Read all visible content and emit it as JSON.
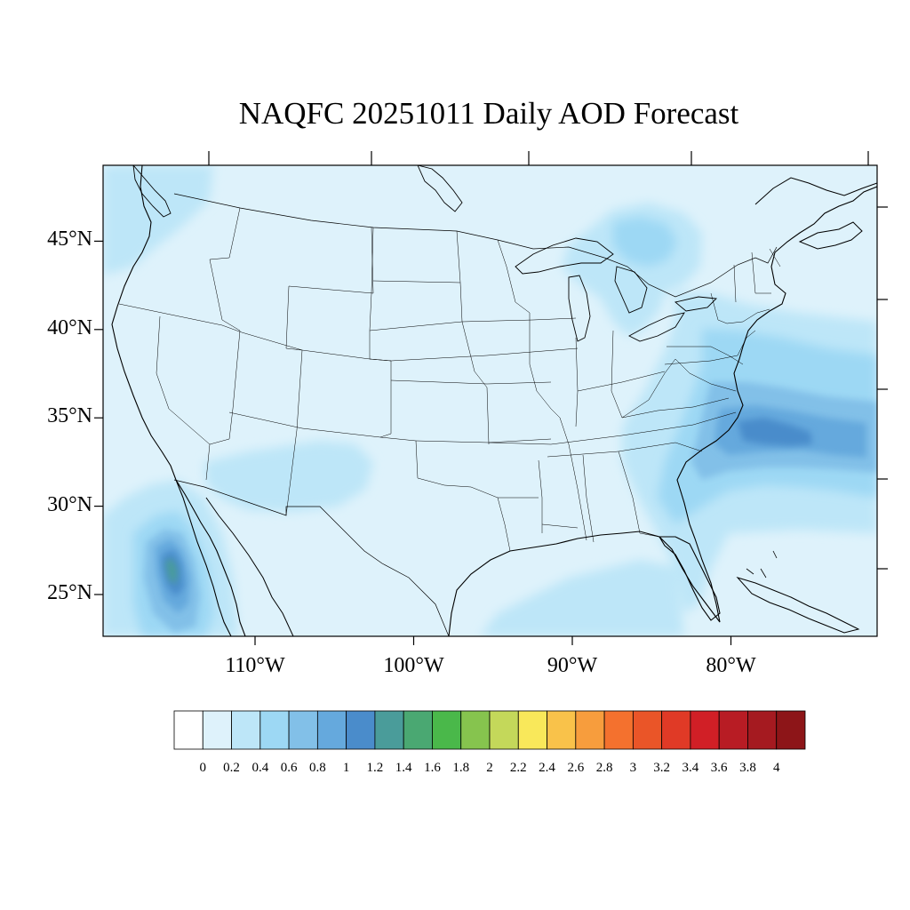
{
  "title": "NAQFC 20251011 Daily AOD Forecast",
  "map": {
    "projection": "lat-lon",
    "lon_range": [
      -119,
      -70
    ],
    "lat_range": [
      22.5,
      49.2
    ],
    "lat_labels": [
      {
        "lat": 45,
        "text": "45°N"
      },
      {
        "lat": 40,
        "text": "40°N"
      },
      {
        "lat": 35,
        "text": "35°N"
      },
      {
        "lat": 30,
        "text": "30°N"
      },
      {
        "lat": 25,
        "text": "25°N"
      }
    ],
    "lon_labels": [
      {
        "lon": -110,
        "text": "110°W"
      },
      {
        "lon": -100,
        "text": "100°W"
      },
      {
        "lon": -90,
        "text": "90°W"
      },
      {
        "lon": -80,
        "text": "80°W"
      }
    ],
    "background_color": "#def2fb",
    "line_color": "#000000"
  },
  "colorbar": {
    "labels": [
      "0",
      "0.2",
      "0.4",
      "0.6",
      "0.8",
      "1",
      "1.2",
      "1.4",
      "1.6",
      "1.8",
      "2",
      "2.2",
      "2.4",
      "2.6",
      "2.8",
      "3",
      "3.2",
      "3.4",
      "3.6",
      "3.8",
      "4"
    ],
    "colors": [
      "#ffffff",
      "#def2fb",
      "#bde6f8",
      "#9dd8f4",
      "#82c0e8",
      "#65a9dd",
      "#4a8ccb",
      "#4a9c9a",
      "#4aa872",
      "#4ab84a",
      "#86c44e",
      "#c4d85a",
      "#f9e85a",
      "#f9c24a",
      "#f79d3d",
      "#f4712e",
      "#ea5528",
      "#e03a26",
      "#d11f26",
      "#b81c24",
      "#a51a20",
      "#8d1518"
    ]
  }
}
